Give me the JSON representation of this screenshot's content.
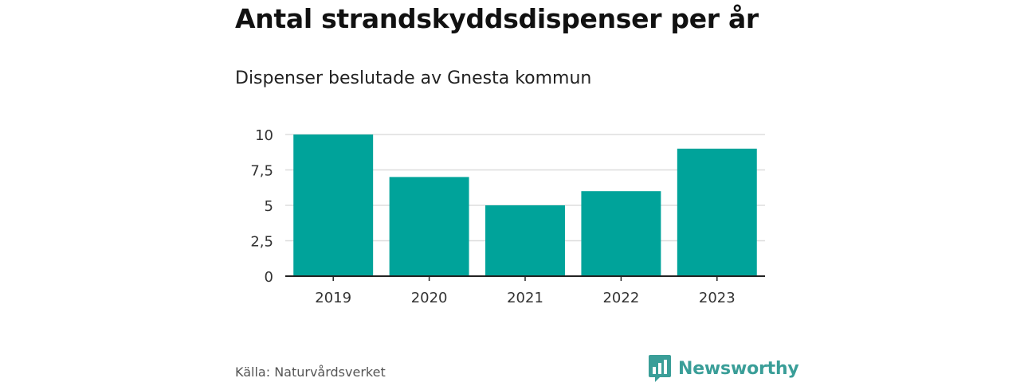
{
  "header": {
    "title": "Antal strandskyddsdispenser per år",
    "subtitle": "Dispenser beslutade av Gnesta kommun"
  },
  "footer": {
    "source": "Källa: Naturvårdsverket",
    "brand": "Newsworthy",
    "brand_icon": "bar-chart-speech-bubble-icon"
  },
  "colors": {
    "bar": "#00a39a",
    "brand": "#3a9e98",
    "grid": "#dddddd",
    "axis": "#222222"
  },
  "chart_data": {
    "type": "bar",
    "title": "Antal strandskyddsdispenser per år",
    "subtitle": "Dispenser beslutade av Gnesta kommun",
    "categories": [
      "2019",
      "2020",
      "2021",
      "2022",
      "2023"
    ],
    "values": [
      10,
      7,
      5,
      6,
      9
    ],
    "ylim": [
      0,
      10
    ],
    "yticks": [
      0,
      2.5,
      5,
      7.5,
      10
    ],
    "ytick_labels": [
      "0",
      "2,5",
      "5",
      "7,5",
      "10"
    ],
    "xlabel": "",
    "ylabel": "",
    "grid": true,
    "legend": "none"
  }
}
